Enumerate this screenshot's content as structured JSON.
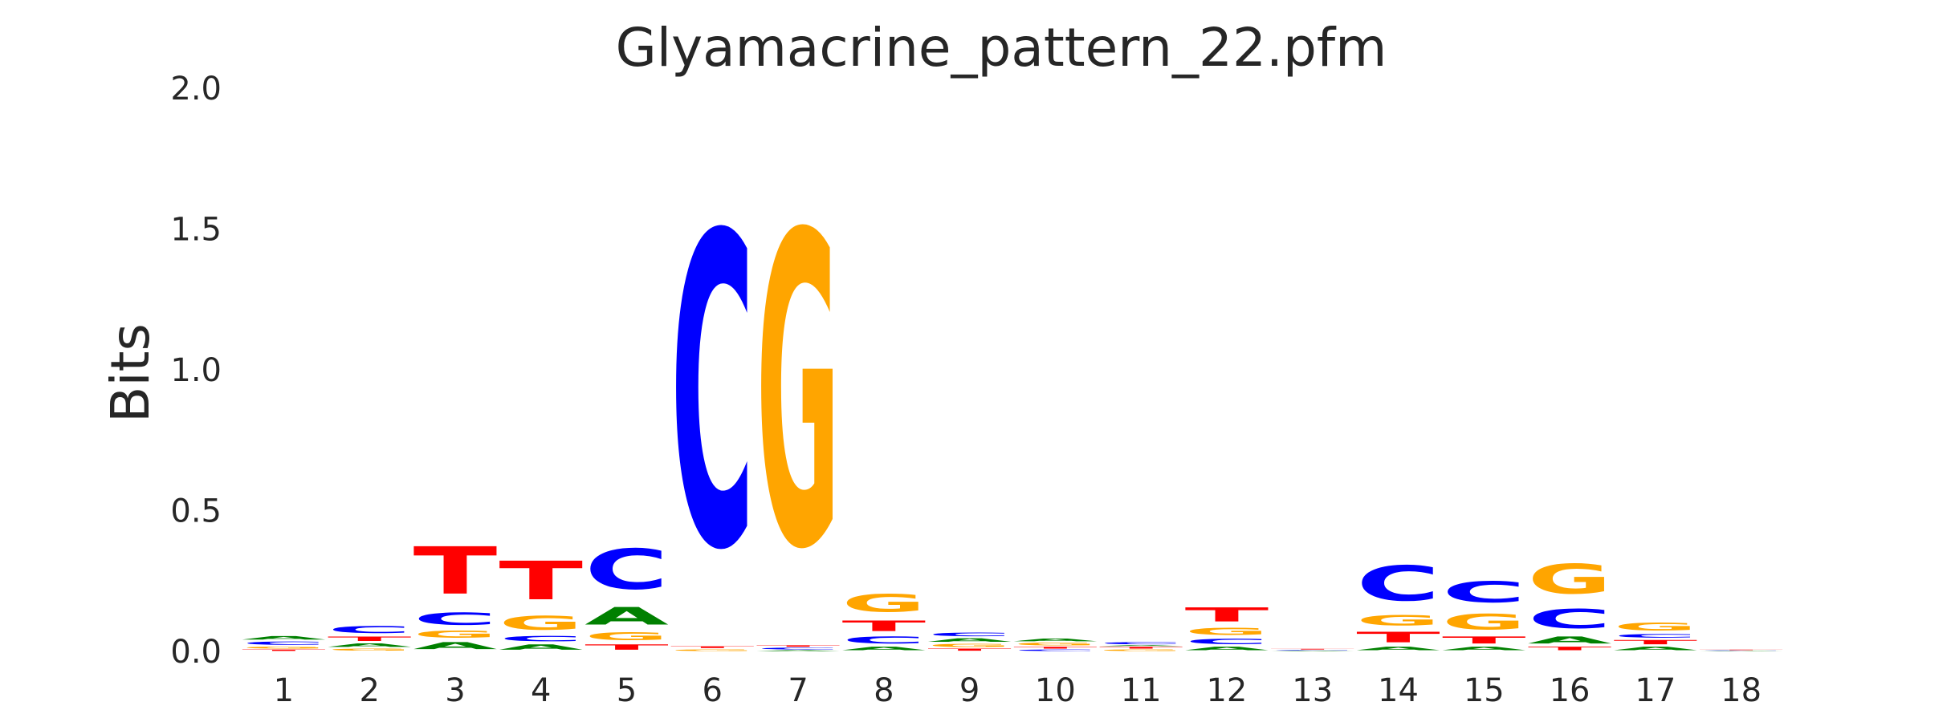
{
  "chart_data": {
    "type": "sequence-logo",
    "title": "Glyamacrine_pattern_22.pfm",
    "ylabel": "Bits",
    "xlabel": "",
    "ylim": [
      0,
      2.0
    ],
    "y_ticks": [
      "0.0",
      "0.5",
      "1.0",
      "1.5",
      "2.0"
    ],
    "grid": false,
    "colors": {
      "A": "#008000",
      "C": "#0000ff",
      "G": "#ffa500",
      "T": "#ff0000"
    },
    "positions": [
      {
        "position": "1",
        "letters": [
          [
            "T",
            0.008
          ],
          [
            "G",
            0.012
          ],
          [
            "C",
            0.018
          ],
          [
            "A",
            0.02
          ]
        ]
      },
      {
        "position": "2",
        "letters": [
          [
            "G",
            0.012
          ],
          [
            "A",
            0.02
          ],
          [
            "T",
            0.025
          ],
          [
            "C",
            0.04
          ]
        ]
      },
      {
        "position": "3",
        "letters": [
          [
            "A",
            0.04
          ],
          [
            "G",
            0.04
          ],
          [
            "C",
            0.07
          ],
          [
            "T",
            0.27
          ]
        ]
      },
      {
        "position": "4",
        "letters": [
          [
            "A",
            0.03
          ],
          [
            "C",
            0.03
          ],
          [
            "G",
            0.08
          ],
          [
            "T",
            0.22
          ]
        ]
      },
      {
        "position": "5",
        "letters": [
          [
            "T",
            0.03
          ],
          [
            "G",
            0.045
          ],
          [
            "A",
            0.1
          ],
          [
            "C",
            0.23
          ]
        ]
      },
      {
        "position": "6",
        "letters": [
          [
            "G",
            0.01
          ],
          [
            "T",
            0.01
          ],
          [
            "C",
            1.78
          ]
        ]
      },
      {
        "position": "7",
        "letters": [
          [
            "A",
            0.005
          ],
          [
            "C",
            0.01
          ],
          [
            "T",
            0.008
          ],
          [
            "G",
            1.78
          ]
        ]
      },
      {
        "position": "8",
        "letters": [
          [
            "A",
            0.02
          ],
          [
            "C",
            0.04
          ],
          [
            "T",
            0.06
          ],
          [
            "G",
            0.1
          ]
        ]
      },
      {
        "position": "9",
        "letters": [
          [
            "T",
            0.012
          ],
          [
            "G",
            0.018
          ],
          [
            "A",
            0.02
          ],
          [
            "C",
            0.02
          ]
        ]
      },
      {
        "position": "10",
        "letters": [
          [
            "C",
            0.008
          ],
          [
            "T",
            0.01
          ],
          [
            "G",
            0.015
          ],
          [
            "A",
            0.015
          ]
        ]
      },
      {
        "position": "11",
        "letters": [
          [
            "G",
            0.008
          ],
          [
            "T",
            0.01
          ],
          [
            "A",
            0.005
          ],
          [
            "C",
            0.012
          ]
        ]
      },
      {
        "position": "12",
        "letters": [
          [
            "A",
            0.02
          ],
          [
            "C",
            0.03
          ],
          [
            "G",
            0.04
          ],
          [
            "T",
            0.08
          ]
        ]
      },
      {
        "position": "13",
        "letters": [
          [
            "A",
            0.003
          ],
          [
            "C",
            0.003
          ],
          [
            "T",
            0.004
          ]
        ]
      },
      {
        "position": "14",
        "letters": [
          [
            "A",
            0.02
          ],
          [
            "T",
            0.06
          ],
          [
            "G",
            0.06
          ],
          [
            "C",
            0.2
          ]
        ]
      },
      {
        "position": "15",
        "letters": [
          [
            "A",
            0.02
          ],
          [
            "T",
            0.04
          ],
          [
            "G",
            0.09
          ],
          [
            "C",
            0.12
          ]
        ]
      },
      {
        "position": "16",
        "letters": [
          [
            "T",
            0.02
          ],
          [
            "A",
            0.04
          ],
          [
            "C",
            0.11
          ],
          [
            "G",
            0.17
          ]
        ]
      },
      {
        "position": "17",
        "letters": [
          [
            "A",
            0.02
          ],
          [
            "T",
            0.025
          ],
          [
            "C",
            0.02
          ],
          [
            "G",
            0.045
          ]
        ]
      },
      {
        "position": "18",
        "letters": [
          [
            "A",
            0.002
          ],
          [
            "C",
            0.002
          ],
          [
            "T",
            0.003
          ]
        ]
      }
    ]
  }
}
